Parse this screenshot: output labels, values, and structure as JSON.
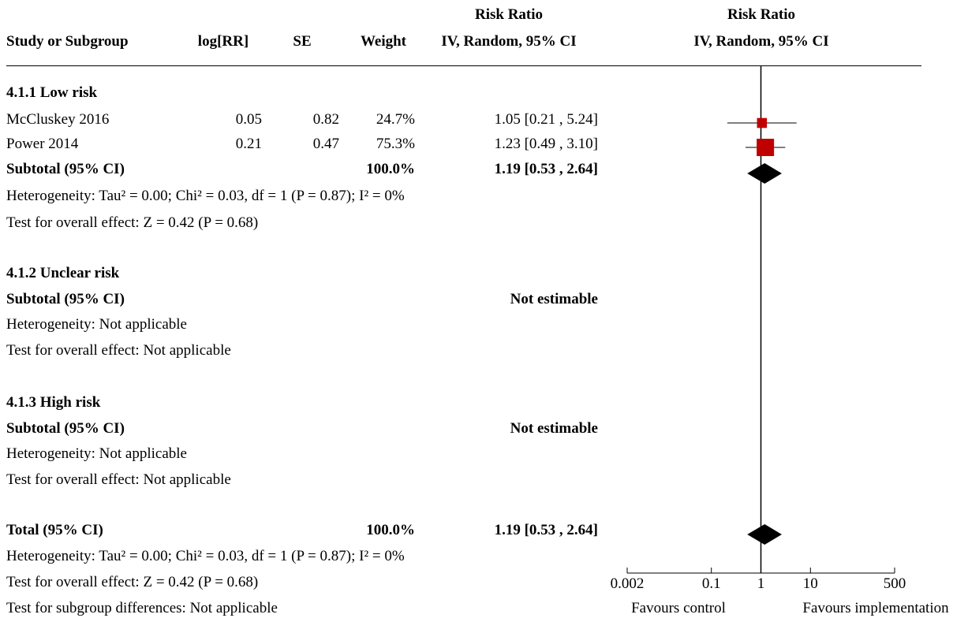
{
  "header": {
    "study_or_subgroup": "Study or Subgroup",
    "log_rr": "log[RR]",
    "se": "SE",
    "weight": "Weight",
    "rr_title": "Risk Ratio",
    "rr_method": "IV, Random, 95% CI",
    "plot_title": "Risk Ratio",
    "plot_method": "IV, Random, 95% CI"
  },
  "subgroups": [
    {
      "title": "4.1.1 Low risk",
      "studies": [
        {
          "name": "McCluskey 2016",
          "log_rr": "0.05",
          "se": "0.82",
          "weight": "24.7%",
          "ci_text": "1.05 [0.21 , 5.24]"
        },
        {
          "name": "Power 2014",
          "log_rr": "0.21",
          "se": "0.47",
          "weight": "75.3%",
          "ci_text": "1.23 [0.49 , 3.10]"
        }
      ],
      "subtotal": {
        "label": "Subtotal (95% CI)",
        "weight": "100.0%",
        "ci_text": "1.19 [0.53 , 2.64]"
      },
      "heterogeneity": "Heterogeneity: Tau² = 0.00; Chi² = 0.03, df = 1 (P = 0.87); I² = 0%",
      "overall_effect": "Test for overall effect: Z = 0.42 (P = 0.68)"
    },
    {
      "title": "4.1.2 Unclear risk",
      "subtotal": {
        "label": "Subtotal (95% CI)",
        "ci_text": "Not estimable"
      },
      "heterogeneity": "Heterogeneity: Not applicable",
      "overall_effect": "Test for overall effect: Not applicable"
    },
    {
      "title": "4.1.3 High risk",
      "subtotal": {
        "label": "Subtotal (95% CI)",
        "ci_text": "Not estimable"
      },
      "heterogeneity": "Heterogeneity: Not applicable",
      "overall_effect": "Test for overall effect: Not applicable"
    }
  ],
  "total": {
    "label": "Total (95% CI)",
    "weight": "100.0%",
    "ci_text": "1.19 [0.53 , 2.64]",
    "heterogeneity": "Heterogeneity: Tau² = 0.00; Chi² = 0.03, df = 1 (P = 0.87); I² = 0%",
    "overall_effect": "Test for overall effect: Z = 0.42 (P = 0.68)",
    "subgroup_differences": "Test for subgroup differences: Not applicable"
  },
  "axis": {
    "favours_left": "Favours control",
    "favours_right": "Favours implementation"
  },
  "chart_data": {
    "type": "forest",
    "scale": "log",
    "xlim": [
      0.002,
      500
    ],
    "ticks": [
      {
        "value": 0.002,
        "label": "0.002"
      },
      {
        "value": 0.1,
        "label": "0.1"
      },
      {
        "value": 1,
        "label": "1"
      },
      {
        "value": 10,
        "label": "10"
      },
      {
        "value": 500,
        "label": "500"
      }
    ],
    "null_value": 1,
    "studies": [
      {
        "name": "McCluskey 2016",
        "rr": 1.05,
        "lower": 0.21,
        "upper": 5.24,
        "weight": 24.7
      },
      {
        "name": "Power 2014",
        "rr": 1.23,
        "lower": 0.49,
        "upper": 3.1,
        "weight": 75.3
      }
    ],
    "pooled": [
      {
        "name": "Subtotal (95% CI)",
        "rr": 1.19,
        "lower": 0.53,
        "upper": 2.64
      },
      {
        "name": "Total (95% CI)",
        "rr": 1.19,
        "lower": 0.53,
        "upper": 2.64
      }
    ],
    "colors": {
      "study_marker": "#c00000",
      "pooled_marker": "#000000",
      "lines": "#000000"
    }
  }
}
